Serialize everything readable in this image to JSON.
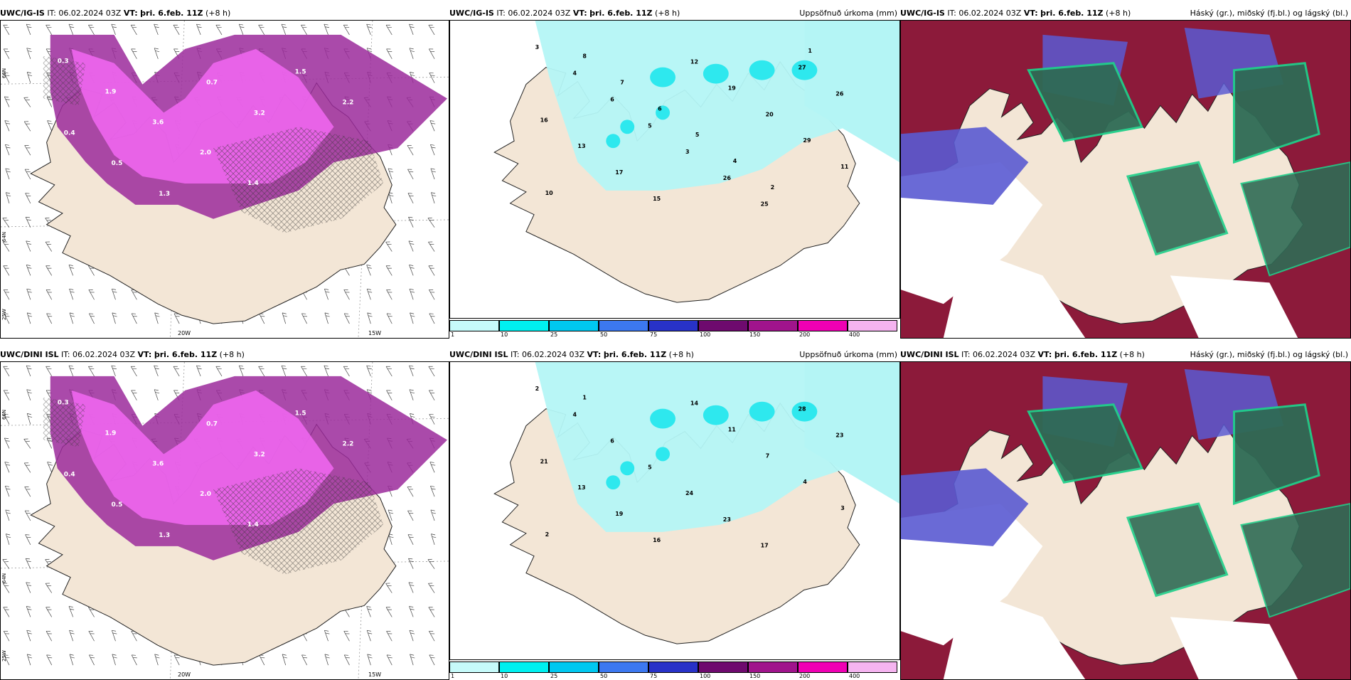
{
  "panels": [
    {
      "source": "UWC/IG-IS",
      "it": "IT: 06.02.2024 03Z",
      "vt_label": "VT:",
      "vt": "þri. 6.feb. 11Z",
      "lead": "(+8 h)",
      "product": ""
    },
    {
      "source": "UWC/IG-IS",
      "it": "IT: 06.02.2024 03Z",
      "vt_label": "VT:",
      "vt": "þri. 6.feb. 11Z",
      "lead": "(+8 h)",
      "product": "Uppsöfnuð úrkoma (mm)"
    },
    {
      "source": "UWC/IG-IS",
      "it": "IT: 06.02.2024 03Z",
      "vt_label": "VT:",
      "vt": "þri. 6.feb. 11Z",
      "lead": "(+8 h)",
      "product": "Háský (gr.), miðský (fj.bl.) og lágský (bl.)"
    },
    {
      "source": "UWC/DINI ISL",
      "it": "IT: 06.02.2024 03Z",
      "vt_label": "VT:",
      "vt": "þri. 6.feb. 11Z",
      "lead": "(+8 h)",
      "product": ""
    },
    {
      "source": "UWC/DINI ISL",
      "it": "IT: 06.02.2024 03Z",
      "vt_label": "VT:",
      "vt": "þri. 6.feb. 11Z",
      "lead": "(+8 h)",
      "product": "Uppsöfnuð úrkoma (mm)"
    },
    {
      "source": "UWC/DINI ISL",
      "it": "IT: 06.02.2024 03Z",
      "vt_label": "VT:",
      "vt": "þri. 6.feb. 11Z",
      "lead": "(+8 h)",
      "product": "Háský (gr.), miðský (fj.bl.) og lágský (bl.)"
    }
  ],
  "axis_labels": {
    "lon_20w": "20W",
    "lon_15w": "15W",
    "lat_66n": "66N",
    "lat_64n": "64N",
    "lon_25w": "25W"
  },
  "colorbar": {
    "ticks": [
      "1",
      "10",
      "25",
      "50",
      "75",
      "100",
      "150",
      "200",
      "400"
    ],
    "colors": [
      "#c6fafa",
      "#00f0f0",
      "#00c8f0",
      "#3c78f0",
      "#2832c8",
      "#6e0a6e",
      "#a0148c",
      "#f000b4",
      "#f5b4f0"
    ]
  },
  "colors": {
    "land": "#f3e6d6",
    "precip_light": "#b4f5f5",
    "precip_pink": "#ee66ee",
    "precip_purple": "#9b2a9b",
    "cloud_red": "#8c1a3a",
    "cloud_blue": "#5a5ad2",
    "cloud_green": "#2f6b55"
  },
  "precip_values_top": [
    "3",
    "4",
    "6",
    "5",
    "3",
    "26",
    "25",
    "27",
    "26",
    "16",
    "13",
    "17",
    "15",
    "12",
    "19",
    "20",
    "29",
    "11",
    "10",
    "8",
    "7",
    "6",
    "5",
    "4",
    "2",
    "1"
  ],
  "precip_values_bottom": [
    "2",
    "4",
    "6",
    "5",
    "24",
    "23",
    "17",
    "28",
    "23",
    "21",
    "13",
    "19",
    "16",
    "14",
    "11",
    "7",
    "4",
    "3",
    "2",
    "1"
  ]
}
